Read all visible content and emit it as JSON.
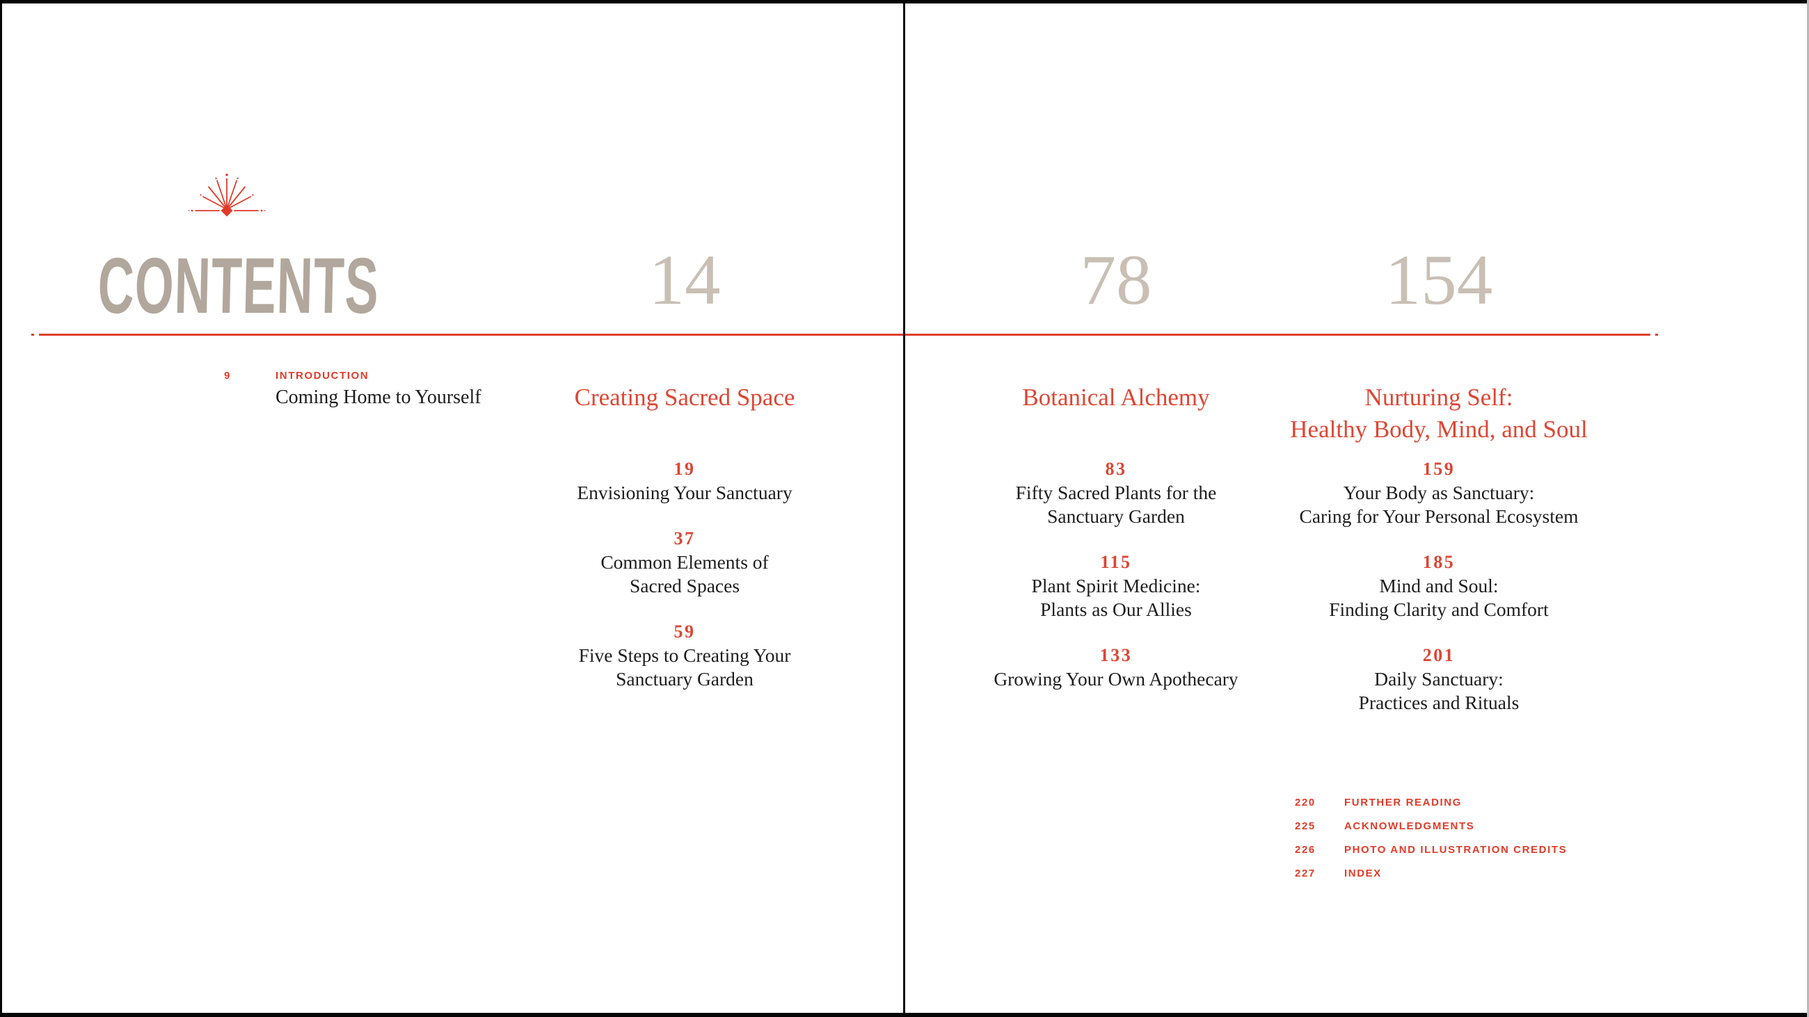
{
  "title": "CONTENTS",
  "colors": {
    "accent_red": "#e0402d",
    "heading_red": "#dd4634",
    "title_taupe": "#b2a79c",
    "chapter_number_taupe": "#c9bfb4",
    "body_text": "#1d1d1d"
  },
  "icon": "sunburst-icon",
  "intro": {
    "page": "9",
    "label": "INTRODUCTION",
    "title": "Coming Home to Yourself"
  },
  "chapters": [
    {
      "number": "14",
      "title_lines": [
        "Creating Sacred Space"
      ],
      "entries": [
        {
          "page": "19",
          "lines": [
            "Envisioning Your Sanctuary"
          ]
        },
        {
          "page": "37",
          "lines": [
            "Common Elements of",
            "Sacred Spaces"
          ]
        },
        {
          "page": "59",
          "lines": [
            "Five Steps to Creating Your",
            "Sanctuary Garden"
          ]
        }
      ]
    },
    {
      "number": "78",
      "title_lines": [
        "Botanical Alchemy"
      ],
      "entries": [
        {
          "page": "83",
          "lines": [
            "Fifty Sacred Plants for the",
            "Sanctuary Garden"
          ]
        },
        {
          "page": "115",
          "lines": [
            "Plant Spirit Medicine:",
            "Plants as Our Allies"
          ]
        },
        {
          "page": "133",
          "lines": [
            "Growing Your Own Apothecary"
          ]
        }
      ]
    },
    {
      "number": "154",
      "title_lines": [
        "Nurturing Self:",
        "Healthy Body, Mind, and Soul"
      ],
      "entries": [
        {
          "page": "159",
          "lines": [
            "Your Body as Sanctuary:",
            "Caring for Your Personal Ecosystem"
          ]
        },
        {
          "page": "185",
          "lines": [
            "Mind and Soul:",
            "Finding Clarity and Comfort"
          ]
        },
        {
          "page": "201",
          "lines": [
            "Daily Sanctuary:",
            "Practices and Rituals"
          ]
        }
      ]
    }
  ],
  "backmatter": [
    {
      "page": "220",
      "label": "FURTHER READING"
    },
    {
      "page": "225",
      "label": "ACKNOWLEDGMENTS"
    },
    {
      "page": "226",
      "label": "PHOTO AND ILLUSTRATION CREDITS"
    },
    {
      "page": "227",
      "label": "INDEX"
    }
  ]
}
